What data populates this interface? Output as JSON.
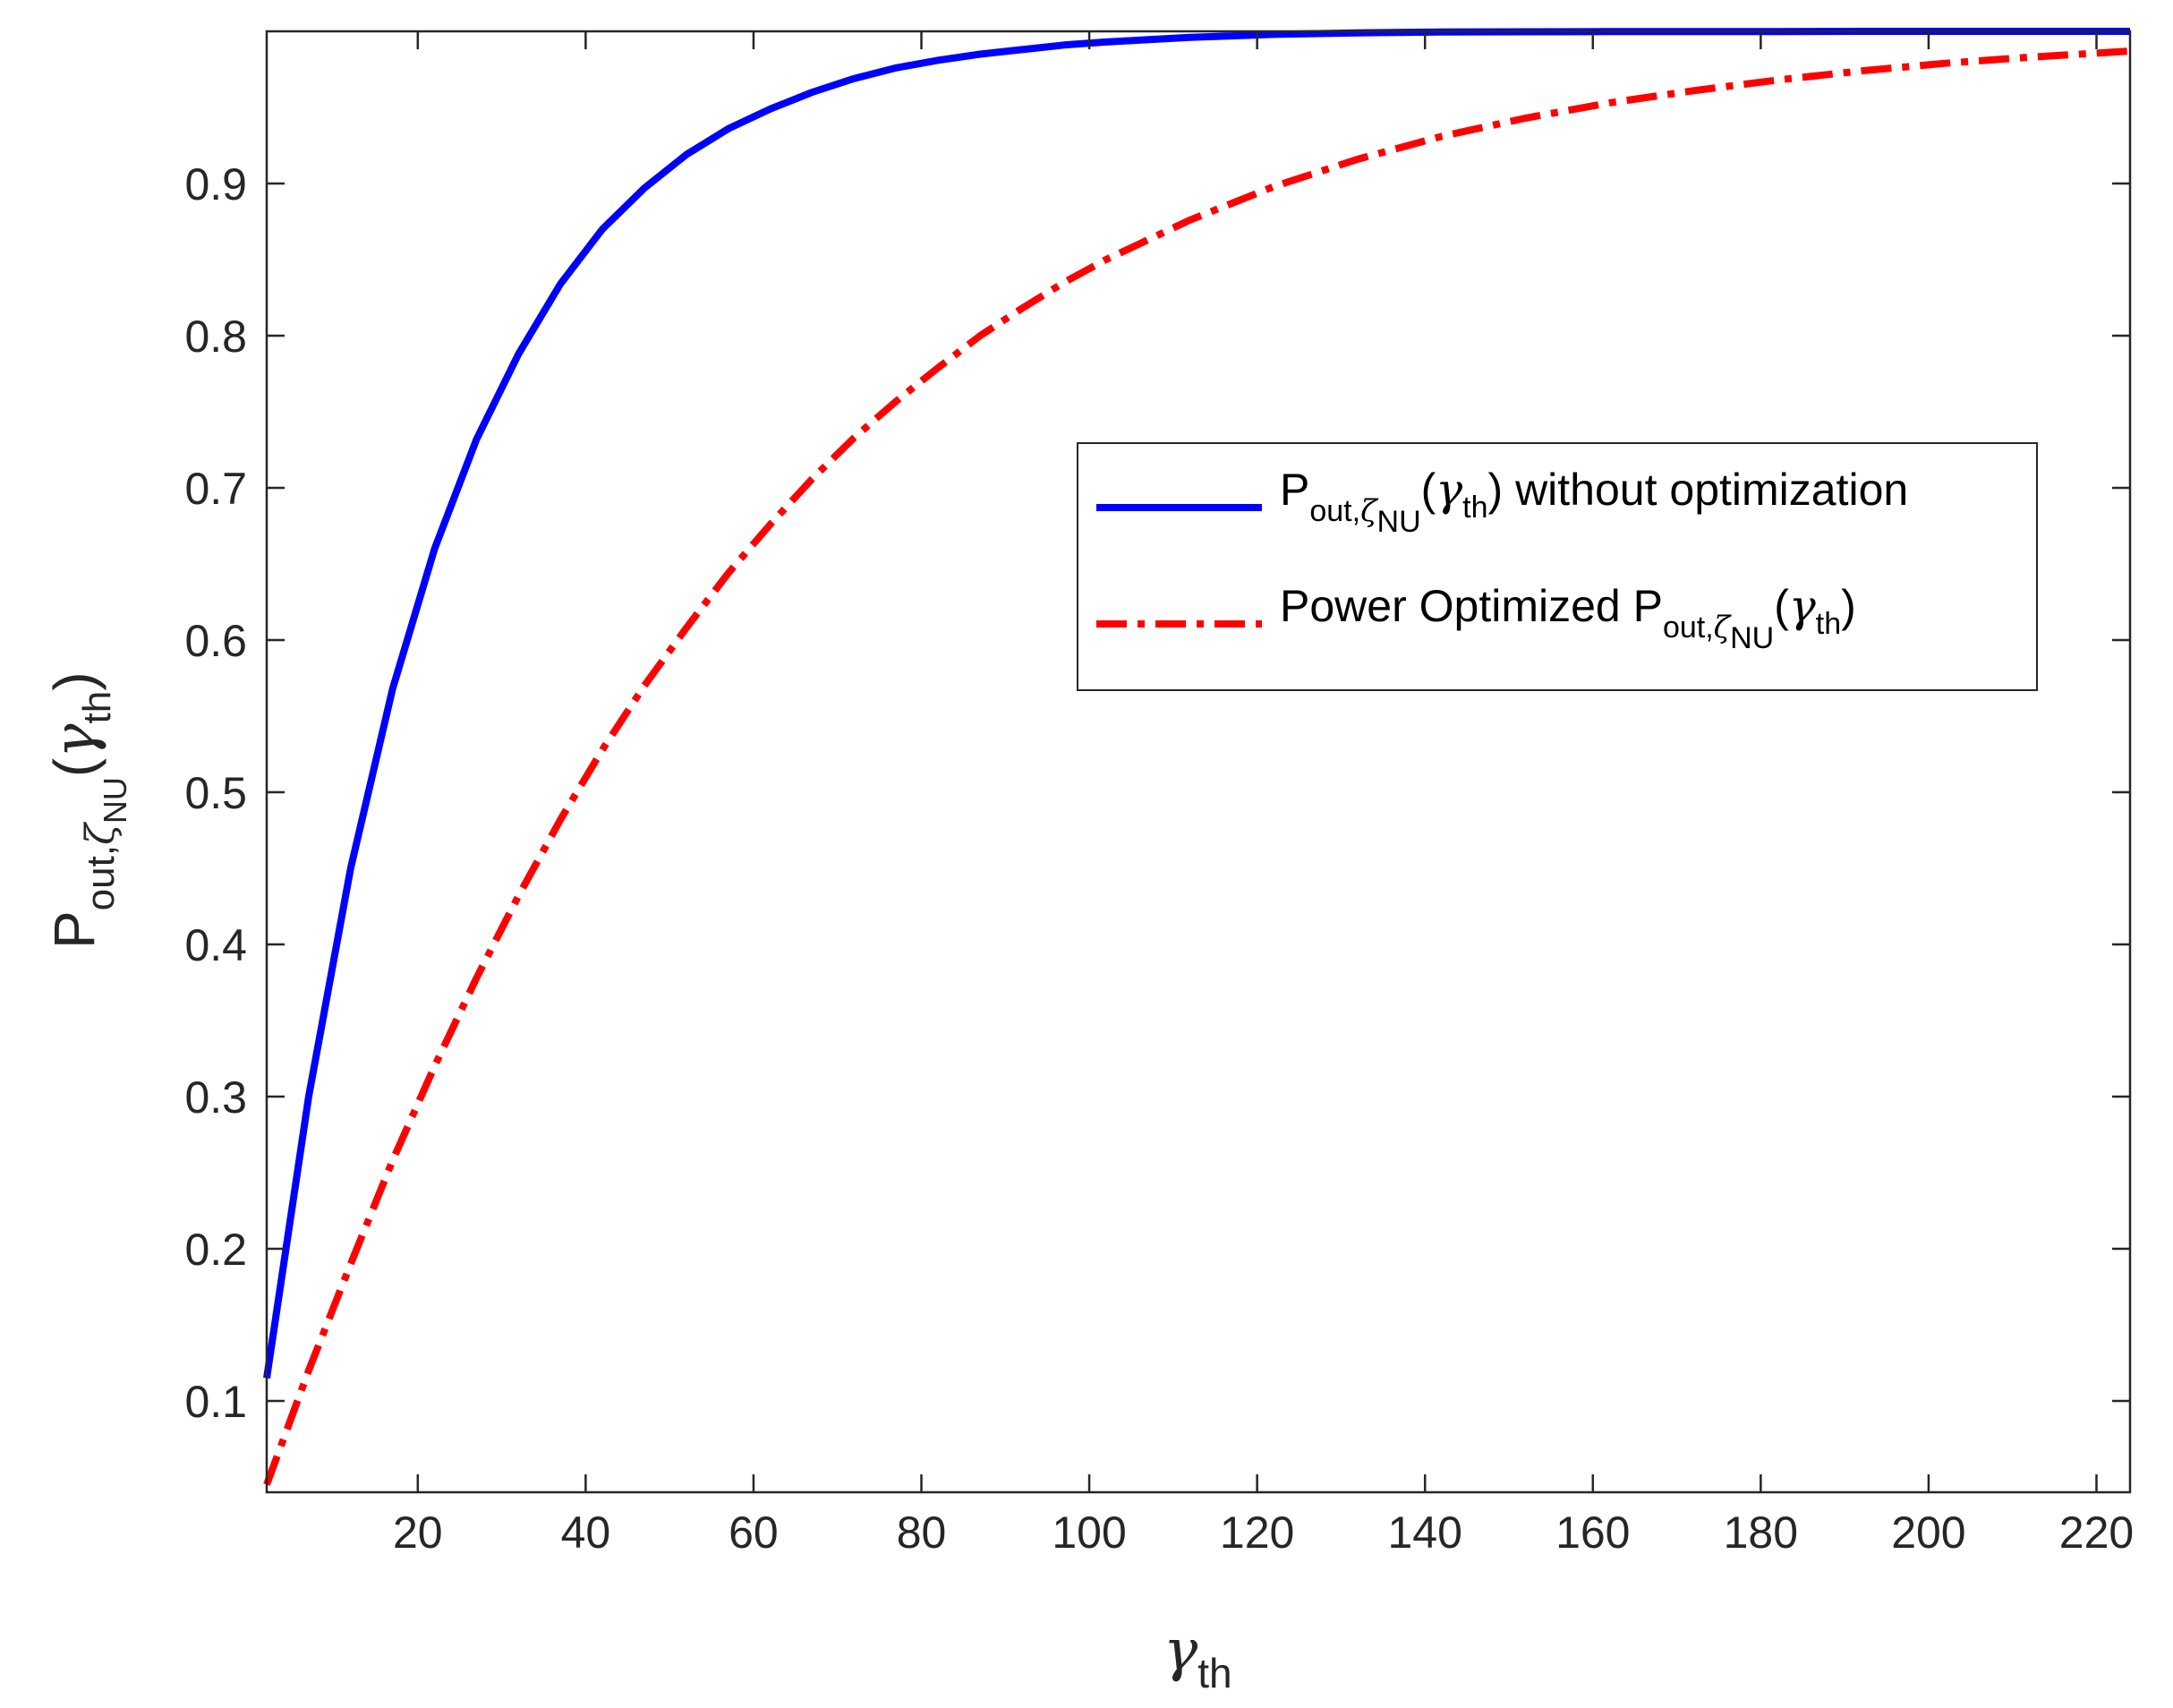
{
  "chart_data": {
    "type": "line",
    "title": "",
    "xlabel": {
      "main": "γ",
      "sub": "th"
    },
    "ylabel": {
      "P": "P",
      "sub_out": "out,",
      "zeta": "ζ",
      "sub_nu": "NU",
      "open": "(",
      "gamma": "γ",
      "sub_th": "th",
      "close": ")"
    },
    "xlim": [
      2,
      224
    ],
    "ylim": [
      0.04,
      1.0
    ],
    "xticks": [
      20,
      40,
      60,
      80,
      100,
      120,
      140,
      160,
      180,
      200,
      220
    ],
    "yticks": [
      0.1,
      0.2,
      0.3,
      0.4,
      0.5,
      0.6,
      0.7,
      0.8,
      0.9
    ],
    "xtick_labels": [
      "20",
      "40",
      "60",
      "80",
      "100",
      "120",
      "140",
      "160",
      "180",
      "200",
      "220"
    ],
    "ytick_labels": [
      "0.1",
      "0.2",
      "0.3",
      "0.4",
      "0.5",
      "0.6",
      "0.7",
      "0.8",
      "0.9"
    ],
    "grid": false,
    "legend_position": "center-right",
    "series": [
      {
        "color": "#0000ff",
        "line_style": "solid",
        "legend": {
          "P": "P",
          "sub_out": "out,",
          "zeta": "ζ",
          "sub_nu": "NU",
          "open": "(",
          "gamma": "γ",
          "sub_th": "th",
          "tail": ") without optimization",
          "prefix": ""
        },
        "x": [
          2,
          7,
          12,
          17,
          22,
          27,
          32,
          37,
          42,
          47,
          52,
          57,
          62,
          67,
          72,
          77,
          82,
          87,
          92,
          97,
          102,
          112,
          122,
          132,
          142,
          152,
          162,
          172,
          182,
          192,
          202,
          212,
          224
        ],
        "y": [
          0.115,
          0.3,
          0.45,
          0.568,
          0.66,
          0.732,
          0.788,
          0.834,
          0.87,
          0.897,
          0.919,
          0.936,
          0.949,
          0.96,
          0.969,
          0.976,
          0.981,
          0.985,
          0.988,
          0.991,
          0.993,
          0.996,
          0.998,
          0.999,
          0.9995,
          0.9997,
          0.9998,
          0.9999,
          0.9999,
          1.0,
          1.0,
          1.0,
          1.0
        ]
      },
      {
        "color": "#ff0000",
        "line_style": "dashdot",
        "legend": {
          "prefix": "Power Optimized ",
          "P": "P",
          "sub_out": "out,",
          "zeta": "ζ",
          "sub_nu": "NU",
          "open": "(",
          "gamma": "γ",
          "sub_th": "th",
          "tail": ")"
        },
        "x": [
          2,
          7,
          12,
          17,
          22,
          27,
          32,
          37,
          42,
          47,
          52,
          57,
          62,
          67,
          72,
          77,
          82,
          87,
          92,
          97,
          102,
          112,
          122,
          132,
          142,
          152,
          162,
          172,
          182,
          192,
          202,
          212,
          224
        ],
        "y": [
          0.045,
          0.12,
          0.19,
          0.258,
          0.32,
          0.378,
          0.432,
          0.482,
          0.528,
          0.57,
          0.608,
          0.644,
          0.676,
          0.706,
          0.733,
          0.757,
          0.779,
          0.8,
          0.818,
          0.835,
          0.85,
          0.876,
          0.898,
          0.916,
          0.931,
          0.943,
          0.953,
          0.961,
          0.968,
          0.974,
          0.979,
          0.983,
          0.987
        ]
      }
    ]
  }
}
